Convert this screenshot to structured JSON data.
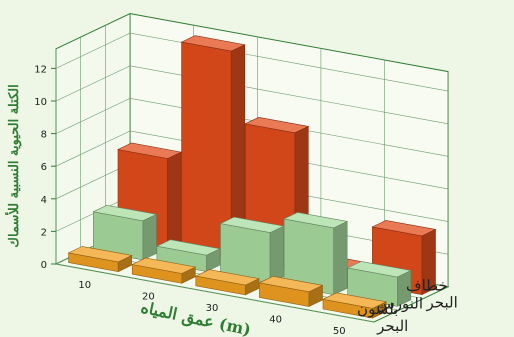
{
  "chart_data": {
    "type": "bar",
    "subtype": "3d-bar",
    "categories": [
      "10",
      "20",
      "30",
      "40",
      "50"
    ],
    "series": [
      {
        "name": "بلشون البحر",
        "values": [
          0.6,
          0.6,
          0.6,
          0.9,
          0.6
        ],
        "color": "#f0a020"
      },
      {
        "name": "النورس",
        "values": [
          2.4,
          1.0,
          3.1,
          4.1,
          1.8
        ],
        "color": "#a8dca0"
      },
      {
        "name": "خطاف البحر",
        "values": [
          5.5,
          12.8,
          8.5,
          0.8,
          3.6
        ],
        "color": "#e34d1c"
      }
    ],
    "xlabel": "عمق المياه (m)",
    "ylabel": "الكتلة الحيوية النسبية للأسماك",
    "yticks": [
      "0",
      "2",
      "4",
      "6",
      "8",
      "10",
      "12"
    ],
    "ylim": [
      0,
      12
    ],
    "grid": true,
    "background": "#eef6e6",
    "axis_color": "#2e7d32"
  }
}
